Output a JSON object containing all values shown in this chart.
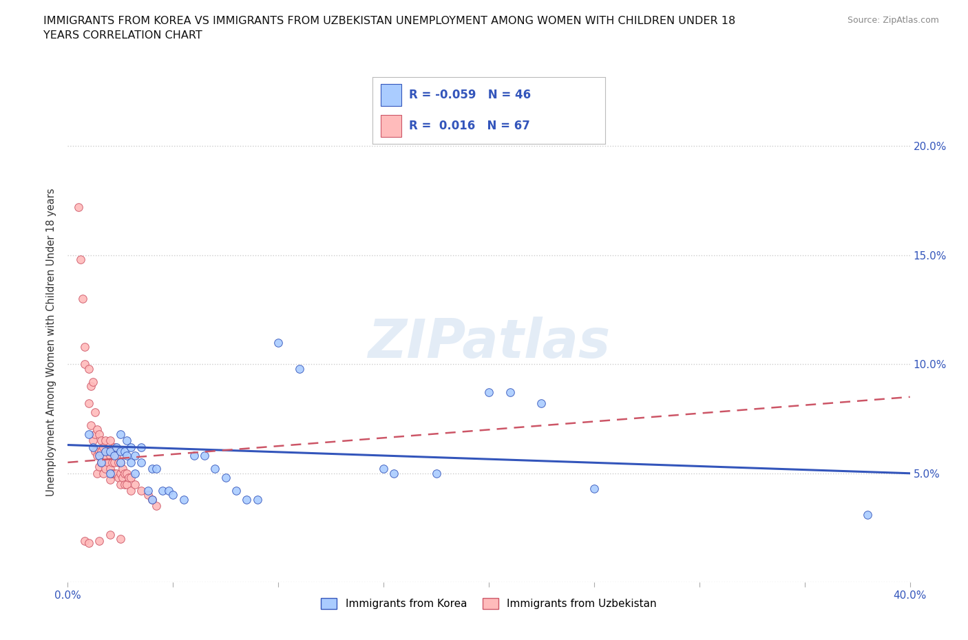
{
  "title": "IMMIGRANTS FROM KOREA VS IMMIGRANTS FROM UZBEKISTAN UNEMPLOYMENT AMONG WOMEN WITH CHILDREN UNDER 18\nYEARS CORRELATION CHART",
  "source_text": "Source: ZipAtlas.com",
  "ylabel": "Unemployment Among Women with Children Under 18 years",
  "xlim": [
    0.0,
    0.4
  ],
  "ylim": [
    0.0,
    0.22
  ],
  "xticks": [
    0.0,
    0.05,
    0.1,
    0.15,
    0.2,
    0.25,
    0.3,
    0.35,
    0.4
  ],
  "yticks": [
    0.0,
    0.05,
    0.1,
    0.15,
    0.2
  ],
  "ytick_labels_right": [
    "",
    "5.0%",
    "10.0%",
    "15.0%",
    "20.0%"
  ],
  "grid_color": "#cccccc",
  "background_color": "#ffffff",
  "watermark": "ZIPatlas",
  "korea_color": "#aaccff",
  "uzbekistan_color": "#ffbbbb",
  "korea_line_color": "#3355bb",
  "uzbekistan_line_color": "#cc5566",
  "legend_r_korea": "-0.059",
  "legend_n_korea": "46",
  "legend_r_uzbekistan": "0.016",
  "legend_n_uzbekistan": "67",
  "korea_points": [
    [
      0.01,
      0.068
    ],
    [
      0.012,
      0.062
    ],
    [
      0.015,
      0.058
    ],
    [
      0.016,
      0.055
    ],
    [
      0.018,
      0.06
    ],
    [
      0.02,
      0.06
    ],
    [
      0.02,
      0.05
    ],
    [
      0.022,
      0.058
    ],
    [
      0.023,
      0.062
    ],
    [
      0.025,
      0.068
    ],
    [
      0.025,
      0.055
    ],
    [
      0.025,
      0.06
    ],
    [
      0.027,
      0.06
    ],
    [
      0.028,
      0.058
    ],
    [
      0.028,
      0.065
    ],
    [
      0.03,
      0.055
    ],
    [
      0.03,
      0.062
    ],
    [
      0.032,
      0.058
    ],
    [
      0.032,
      0.05
    ],
    [
      0.035,
      0.062
    ],
    [
      0.035,
      0.055
    ],
    [
      0.038,
      0.042
    ],
    [
      0.04,
      0.052
    ],
    [
      0.04,
      0.038
    ],
    [
      0.042,
      0.052
    ],
    [
      0.045,
      0.042
    ],
    [
      0.048,
      0.042
    ],
    [
      0.05,
      0.04
    ],
    [
      0.055,
      0.038
    ],
    [
      0.06,
      0.058
    ],
    [
      0.065,
      0.058
    ],
    [
      0.07,
      0.052
    ],
    [
      0.075,
      0.048
    ],
    [
      0.08,
      0.042
    ],
    [
      0.085,
      0.038
    ],
    [
      0.09,
      0.038
    ],
    [
      0.1,
      0.11
    ],
    [
      0.11,
      0.098
    ],
    [
      0.15,
      0.052
    ],
    [
      0.155,
      0.05
    ],
    [
      0.175,
      0.05
    ],
    [
      0.2,
      0.087
    ],
    [
      0.21,
      0.087
    ],
    [
      0.225,
      0.082
    ],
    [
      0.25,
      0.043
    ],
    [
      0.38,
      0.031
    ]
  ],
  "uzbekistan_points": [
    [
      0.005,
      0.172
    ],
    [
      0.006,
      0.148
    ],
    [
      0.007,
      0.13
    ],
    [
      0.008,
      0.108
    ],
    [
      0.008,
      0.1
    ],
    [
      0.01,
      0.098
    ],
    [
      0.01,
      0.082
    ],
    [
      0.011,
      0.09
    ],
    [
      0.011,
      0.072
    ],
    [
      0.012,
      0.092
    ],
    [
      0.012,
      0.065
    ],
    [
      0.013,
      0.078
    ],
    [
      0.013,
      0.068
    ],
    [
      0.013,
      0.06
    ],
    [
      0.014,
      0.07
    ],
    [
      0.014,
      0.058
    ],
    [
      0.014,
      0.05
    ],
    [
      0.015,
      0.068
    ],
    [
      0.015,
      0.06
    ],
    [
      0.015,
      0.053
    ],
    [
      0.016,
      0.065
    ],
    [
      0.016,
      0.06
    ],
    [
      0.016,
      0.055
    ],
    [
      0.017,
      0.062
    ],
    [
      0.017,
      0.055
    ],
    [
      0.017,
      0.05
    ],
    [
      0.018,
      0.065
    ],
    [
      0.018,
      0.058
    ],
    [
      0.018,
      0.052
    ],
    [
      0.019,
      0.06
    ],
    [
      0.019,
      0.055
    ],
    [
      0.02,
      0.065
    ],
    [
      0.02,
      0.058
    ],
    [
      0.02,
      0.052
    ],
    [
      0.02,
      0.047
    ],
    [
      0.021,
      0.06
    ],
    [
      0.021,
      0.055
    ],
    [
      0.021,
      0.05
    ],
    [
      0.022,
      0.062
    ],
    [
      0.022,
      0.055
    ],
    [
      0.022,
      0.05
    ],
    [
      0.023,
      0.058
    ],
    [
      0.023,
      0.05
    ],
    [
      0.024,
      0.055
    ],
    [
      0.024,
      0.048
    ],
    [
      0.025,
      0.055
    ],
    [
      0.025,
      0.05
    ],
    [
      0.025,
      0.045
    ],
    [
      0.026,
      0.052
    ],
    [
      0.026,
      0.048
    ],
    [
      0.027,
      0.05
    ],
    [
      0.027,
      0.045
    ],
    [
      0.028,
      0.05
    ],
    [
      0.028,
      0.045
    ],
    [
      0.029,
      0.048
    ],
    [
      0.03,
      0.048
    ],
    [
      0.03,
      0.042
    ],
    [
      0.032,
      0.045
    ],
    [
      0.035,
      0.042
    ],
    [
      0.038,
      0.04
    ],
    [
      0.04,
      0.038
    ],
    [
      0.042,
      0.035
    ],
    [
      0.008,
      0.019
    ],
    [
      0.01,
      0.018
    ],
    [
      0.015,
      0.019
    ],
    [
      0.02,
      0.022
    ],
    [
      0.025,
      0.02
    ]
  ]
}
